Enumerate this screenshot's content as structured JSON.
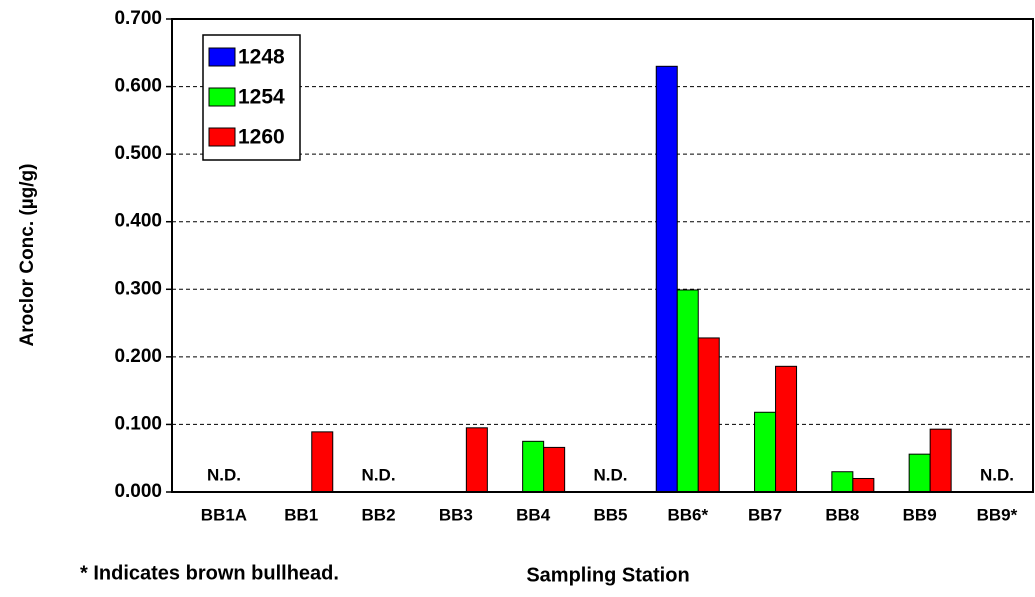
{
  "chart_data": {
    "type": "bar",
    "x_label": "Sampling Station",
    "y_label": "Aroclor Conc. (µg/g)",
    "footnote": "* Indicates brown bullhead.",
    "categories": [
      "BB1A",
      "BB1",
      "BB2",
      "BB3",
      "BB4",
      "BB5",
      "BB6*",
      "BB7",
      "BB8",
      "BB9",
      "BB9*"
    ],
    "category_notes": [
      "N.D.",
      null,
      "N.D.",
      null,
      null,
      "N.D.",
      null,
      null,
      null,
      null,
      "N.D."
    ],
    "series": [
      {
        "name": "1248",
        "color": "#0000ff",
        "values": [
          null,
          null,
          null,
          null,
          null,
          null,
          0.63,
          null,
          null,
          null,
          null
        ]
      },
      {
        "name": "1254",
        "color": "#00ff00",
        "values": [
          null,
          null,
          null,
          null,
          0.075,
          null,
          0.299,
          0.118,
          0.03,
          0.056,
          null
        ]
      },
      {
        "name": "1260",
        "color": "#ff0000",
        "values": [
          null,
          0.089,
          null,
          0.095,
          0.066,
          null,
          0.228,
          0.186,
          0.02,
          0.093,
          null
        ]
      }
    ],
    "ylim": [
      0,
      0.7
    ],
    "yticks": [
      {
        "value": 0,
        "label": "0.000"
      },
      {
        "value": 0.1,
        "label": "0.100"
      },
      {
        "value": 0.2,
        "label": "0.200"
      },
      {
        "value": 0.3,
        "label": "0.300"
      },
      {
        "value": 0.4,
        "label": "0.400"
      },
      {
        "value": 0.5,
        "label": "0.500"
      },
      {
        "value": 0.6,
        "label": "0.600"
      },
      {
        "value": 0.7,
        "label": "0.700"
      }
    ],
    "grid": true,
    "legend": "upper left"
  }
}
